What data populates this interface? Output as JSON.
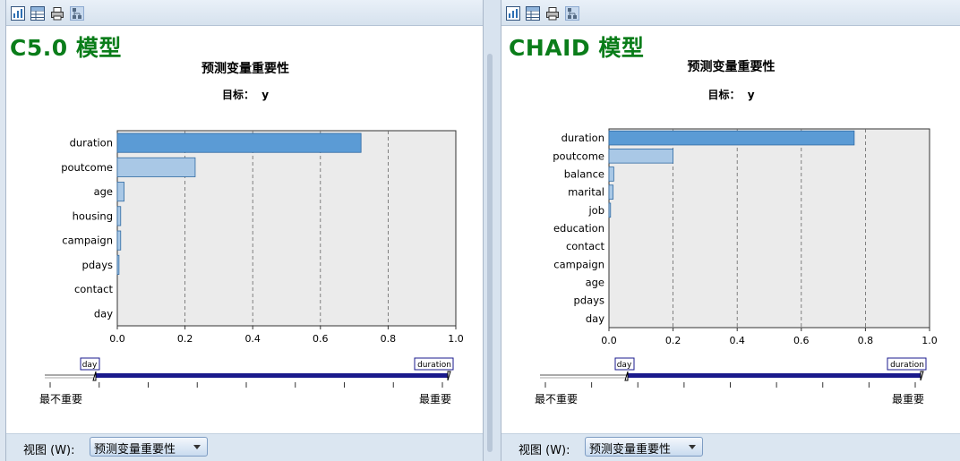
{
  "colors": {
    "bar_primary": "#5b9bd5",
    "bar_secondary": "#a9c8e6",
    "bar_stroke": "#2f6aa3",
    "plot_bg": "#ebebeb",
    "title_green": "#0a7d1a",
    "slider_track": "#1a1a8c"
  },
  "toolbar_icons": [
    "chart-icon",
    "table-icon",
    "print-icon",
    "tree-icon"
  ],
  "panels": [
    {
      "model_title": "C5.0 模型",
      "view": {
        "label": "视图 (W):",
        "mnemonic": "W",
        "selected": "预测变量重要性"
      },
      "slider": {
        "left_tag": "day",
        "right_tag": "duration",
        "left_label": "最不重要",
        "right_label": "最重要"
      },
      "chart_data": {
        "type": "bar",
        "orientation": "horizontal",
        "title": "预测变量重要性",
        "target_label": "目标：",
        "target_value": "y",
        "categories": [
          "duration",
          "poutcome",
          "age",
          "housing",
          "campaign",
          "pdays",
          "contact",
          "day"
        ],
        "values": [
          0.72,
          0.23,
          0.02,
          0.01,
          0.01,
          0.005,
          0.0,
          0.0
        ],
        "highlight": [
          "primary",
          "secondary",
          "secondary",
          "secondary",
          "secondary",
          "secondary",
          "secondary",
          "secondary"
        ],
        "xlim": [
          0,
          1.0
        ],
        "xticks": [
          "0.0",
          "0.2",
          "0.4",
          "0.6",
          "0.8",
          "1.0"
        ],
        "grid": "vertical-dashed"
      }
    },
    {
      "model_title": "CHAID 模型",
      "view": {
        "label": "视图 (W):",
        "mnemonic": "W",
        "selected": "预测变量重要性"
      },
      "slider": {
        "left_tag": "day",
        "right_tag": "duration",
        "left_label": "最不重要",
        "right_label": "最重要"
      },
      "chart_data": {
        "type": "bar",
        "orientation": "horizontal",
        "title": "预测变量重要性",
        "target_label": "目标：",
        "target_value": "y",
        "categories": [
          "duration",
          "poutcome",
          "balance",
          "marital",
          "job",
          "education",
          "contact",
          "campaign",
          "age",
          "pdays",
          "day"
        ],
        "values": [
          0.765,
          0.2,
          0.015,
          0.013,
          0.005,
          0.0,
          0.0,
          0.0,
          0.0,
          0.0,
          0.0
        ],
        "highlight": [
          "primary",
          "secondary",
          "secondary",
          "secondary",
          "secondary",
          "secondary",
          "secondary",
          "secondary",
          "secondary",
          "secondary",
          "secondary"
        ],
        "xlim": [
          0,
          1.0
        ],
        "xticks": [
          "0.0",
          "0.2",
          "0.4",
          "0.6",
          "0.8",
          "1.0"
        ],
        "grid": "vertical-dashed"
      }
    }
  ]
}
